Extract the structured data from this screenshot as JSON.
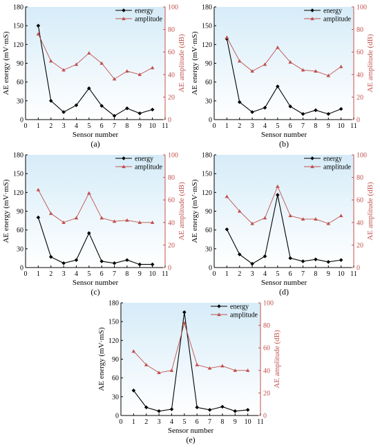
{
  "figure": {
    "colors": {
      "energy": "#000000",
      "amplitude": "#c0504d",
      "plot_bg_top": "#d6ecf8",
      "plot_bg_bottom": "#ffffff"
    }
  },
  "chart_data": [
    {
      "type": "line",
      "panel_label": "(a)",
      "xlabel": "Sensor number",
      "ylabel_left": "AE energy (mV·mS)",
      "ylabel_right": "AE amplitude (dB)",
      "xlim": [
        0,
        11
      ],
      "ylim_left": [
        0,
        180
      ],
      "ylim_right": [
        0,
        100
      ],
      "x_ticks": [
        0,
        1,
        2,
        3,
        4,
        5,
        6,
        7,
        8,
        9,
        10,
        11
      ],
      "y_left_ticks": [
        0,
        30,
        60,
        90,
        120,
        150,
        180
      ],
      "y_right_ticks": [
        0,
        20,
        40,
        60,
        80,
        100
      ],
      "legend_position": "top-right",
      "series": [
        {
          "name": "energy",
          "axis": "left",
          "marker": "diamond",
          "x": [
            1,
            2,
            3,
            4,
            5,
            6,
            7,
            8,
            9,
            10
          ],
          "values": [
            150,
            30,
            12,
            23,
            50,
            22,
            6,
            18,
            10,
            16
          ]
        },
        {
          "name": "amplitude",
          "axis": "right",
          "marker": "triangle",
          "x": [
            1,
            2,
            3,
            4,
            5,
            6,
            7,
            8,
            9,
            10
          ],
          "values": [
            76,
            52,
            44,
            49,
            59,
            50,
            36,
            43,
            40,
            46
          ]
        }
      ]
    },
    {
      "type": "line",
      "panel_label": "(b)",
      "xlabel": "Sensor number",
      "ylabel_left": "AE energy (mV·mS)",
      "ylabel_right": "AE amplitude (dB)",
      "xlim": [
        0,
        11
      ],
      "ylim_left": [
        0,
        180
      ],
      "ylim_right": [
        0,
        100
      ],
      "x_ticks": [
        0,
        1,
        2,
        3,
        4,
        5,
        6,
        7,
        8,
        9,
        10,
        11
      ],
      "y_left_ticks": [
        0,
        30,
        60,
        90,
        120,
        150,
        180
      ],
      "y_right_ticks": [
        0,
        20,
        40,
        60,
        80,
        100
      ],
      "legend_position": "top-right",
      "series": [
        {
          "name": "energy",
          "axis": "left",
          "marker": "diamond",
          "x": [
            1,
            2,
            3,
            4,
            5,
            6,
            7,
            8,
            9,
            10
          ],
          "values": [
            129,
            28,
            12,
            19,
            53,
            21,
            9,
            15,
            9,
            17
          ]
        },
        {
          "name": "amplitude",
          "axis": "right",
          "marker": "triangle",
          "x": [
            1,
            2,
            3,
            4,
            5,
            6,
            7,
            8,
            9,
            10
          ],
          "values": [
            73,
            52,
            43,
            49,
            64,
            51,
            44,
            43,
            39,
            47
          ]
        }
      ]
    },
    {
      "type": "line",
      "panel_label": "(c)",
      "xlabel": "Sensor number",
      "ylabel_left": "AE energy (mV·mS)",
      "ylabel_right": "AE amplitude (dB)",
      "xlim": [
        0,
        11
      ],
      "ylim_left": [
        0,
        180
      ],
      "ylim_right": [
        0,
        100
      ],
      "x_ticks": [
        0,
        1,
        2,
        3,
        4,
        5,
        6,
        7,
        8,
        9,
        10,
        11
      ],
      "y_left_ticks": [
        0,
        30,
        60,
        90,
        120,
        150,
        180
      ],
      "y_right_ticks": [
        0,
        20,
        40,
        60,
        80,
        100
      ],
      "legend_position": "top-right",
      "series": [
        {
          "name": "energy",
          "axis": "left",
          "marker": "diamond",
          "x": [
            1,
            2,
            3,
            4,
            5,
            6,
            7,
            8,
            9,
            10
          ],
          "values": [
            80,
            17,
            7,
            12,
            55,
            10,
            7,
            12,
            5,
            5
          ]
        },
        {
          "name": "amplitude",
          "axis": "right",
          "marker": "triangle",
          "x": [
            1,
            2,
            3,
            4,
            5,
            6,
            7,
            8,
            9,
            10
          ],
          "values": [
            69,
            48,
            40,
            44,
            66,
            44,
            41,
            42,
            40,
            40
          ]
        }
      ]
    },
    {
      "type": "line",
      "panel_label": "(d)",
      "xlabel": "Sensor number",
      "ylabel_left": "AE energy (mV·mS)",
      "ylabel_right": "AE amplitude (dB)",
      "xlim": [
        0,
        11
      ],
      "ylim_left": [
        0,
        180
      ],
      "ylim_right": [
        0,
        100
      ],
      "x_ticks": [
        0,
        1,
        2,
        3,
        4,
        5,
        6,
        7,
        8,
        9,
        10,
        11
      ],
      "y_left_ticks": [
        0,
        30,
        60,
        90,
        120,
        150,
        180
      ],
      "y_right_ticks": [
        0,
        20,
        40,
        60,
        80,
        100
      ],
      "legend_position": "top-right",
      "series": [
        {
          "name": "energy",
          "axis": "left",
          "marker": "diamond",
          "x": [
            1,
            2,
            3,
            4,
            5,
            6,
            7,
            8,
            9,
            10
          ],
          "values": [
            61,
            21,
            6,
            18,
            116,
            15,
            10,
            13,
            9,
            12
          ]
        },
        {
          "name": "amplitude",
          "axis": "right",
          "marker": "triangle",
          "x": [
            1,
            2,
            3,
            4,
            5,
            6,
            7,
            8,
            9,
            10
          ],
          "values": [
            63,
            50,
            39,
            44,
            72,
            46,
            43,
            43,
            39,
            46
          ]
        }
      ]
    },
    {
      "type": "line",
      "panel_label": "(e)",
      "xlabel": "Sensor number",
      "ylabel_left": "AE energy (mV·mS)",
      "ylabel_right": "AE amplitude (dB)",
      "xlim": [
        0,
        11
      ],
      "ylim_left": [
        0,
        180
      ],
      "ylim_right": [
        0,
        100
      ],
      "x_ticks": [
        0,
        1,
        2,
        3,
        4,
        5,
        6,
        7,
        8,
        9,
        10,
        11
      ],
      "y_left_ticks": [
        0,
        30,
        60,
        90,
        120,
        150,
        180
      ],
      "y_right_ticks": [
        0,
        20,
        40,
        60,
        80,
        100
      ],
      "legend_position": "top-right",
      "series": [
        {
          "name": "energy",
          "axis": "left",
          "marker": "diamond",
          "x": [
            1,
            2,
            3,
            4,
            5,
            6,
            7,
            8,
            9,
            10
          ],
          "values": [
            40,
            13,
            7,
            10,
            165,
            13,
            9,
            14,
            7,
            9
          ]
        },
        {
          "name": "amplitude",
          "axis": "right",
          "marker": "triangle",
          "x": [
            1,
            2,
            3,
            4,
            5,
            6,
            7,
            8,
            9,
            10
          ],
          "values": [
            57,
            45,
            38,
            40,
            82,
            45,
            42,
            44,
            40,
            40
          ]
        }
      ]
    }
  ]
}
